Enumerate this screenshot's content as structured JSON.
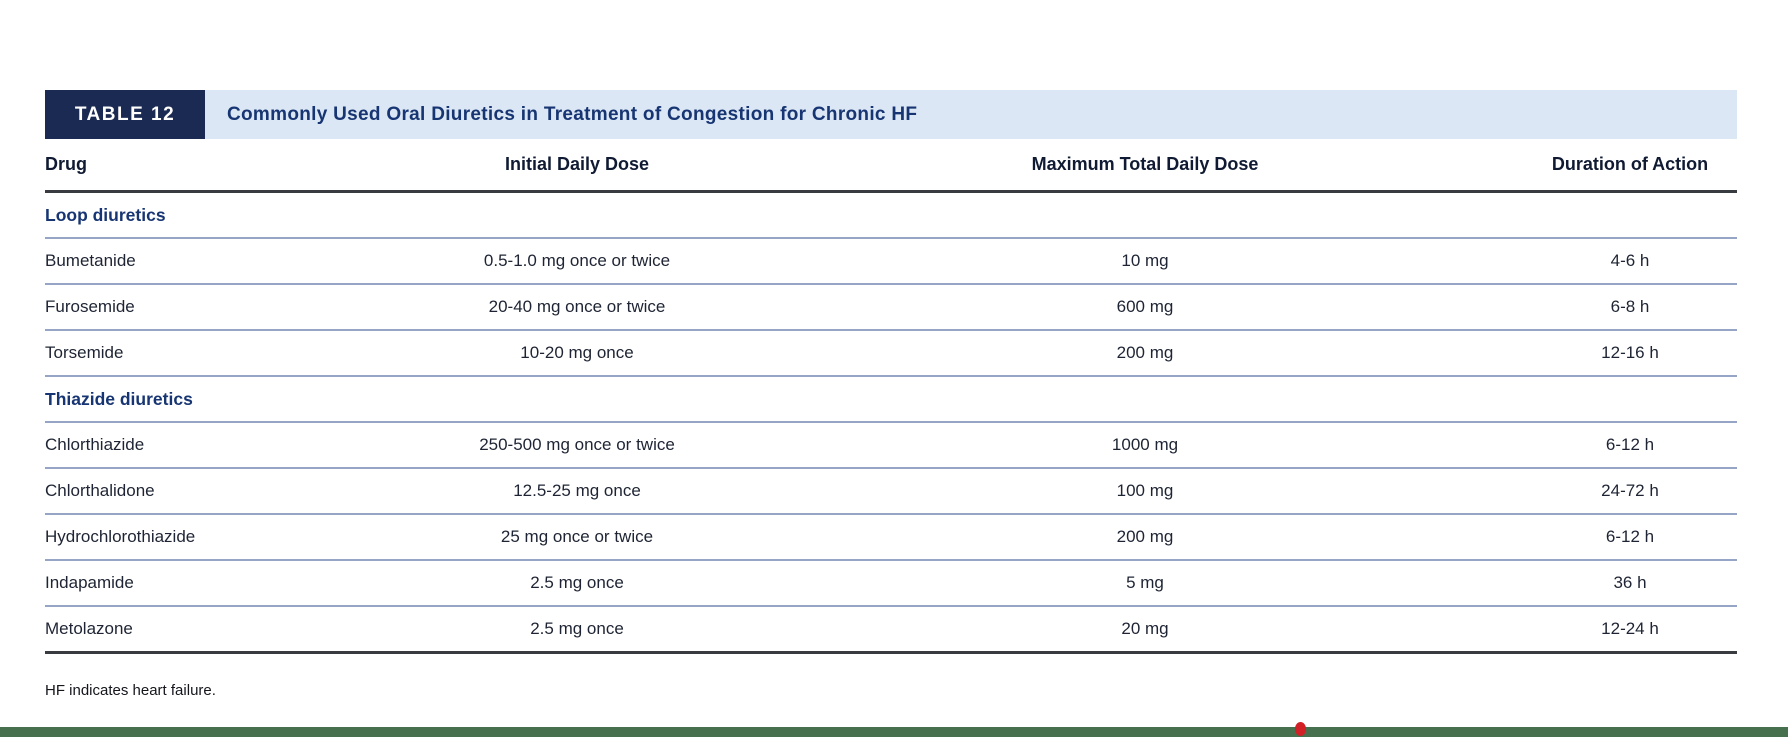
{
  "table": {
    "label": "TABLE 12",
    "title": "Commonly Used Oral Diuretics in Treatment of Congestion for Chronic HF",
    "columns": [
      "Drug",
      "Initial Daily Dose",
      "Maximum Total Daily Dose",
      "Duration of Action"
    ],
    "sections": [
      {
        "header": "Loop diuretics",
        "rows": [
          [
            "Bumetanide",
            "0.5-1.0 mg once or twice",
            "10 mg",
            "4-6 h"
          ],
          [
            "Furosemide",
            "20-40 mg once or twice",
            "600 mg",
            "6-8 h"
          ],
          [
            "Torsemide",
            "10-20 mg once",
            "200 mg",
            "12-16 h"
          ]
        ]
      },
      {
        "header": "Thiazide diuretics",
        "rows": [
          [
            "Chlorthiazide",
            "250-500 mg once or twice",
            "1000 mg",
            "6-12 h"
          ],
          [
            "Chlorthalidone",
            "12.5-25 mg once",
            "100 mg",
            "24-72 h"
          ],
          [
            "Hydrochlorothiazide",
            "25 mg once or twice",
            "200 mg",
            "6-12 h"
          ],
          [
            "Indapamide",
            "2.5 mg once",
            "5 mg",
            "36 h"
          ],
          [
            "Metolazone",
            "2.5 mg once",
            "20 mg",
            "12-24 h"
          ]
        ]
      }
    ],
    "footnote": "HF indicates heart failure."
  },
  "colors": {
    "badge_navy": "#1b2a52",
    "band_blue": "#dce7f5",
    "title_navy": "#173572",
    "row_line_blue": "#96a5c6",
    "rule_dark": "#383b40",
    "bottom_bar_green": "#47704f",
    "marker_red": "#d22027"
  }
}
